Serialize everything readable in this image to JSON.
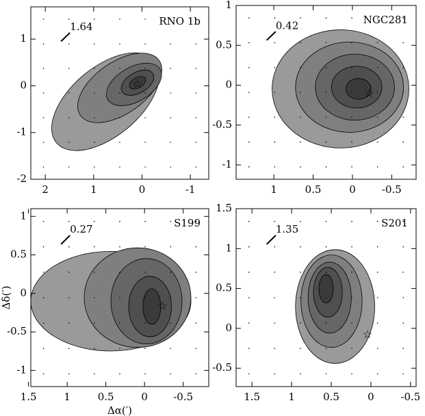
{
  "chart_data": [
    {
      "type": "contour",
      "title": "RNO 1b",
      "annotation": "1.64",
      "xlim": [
        2.3,
        -1.38
      ],
      "ylim": [
        -2,
        1.69
      ],
      "xticks": [
        2,
        1,
        0,
        -1
      ],
      "yticks": [
        -2,
        -1,
        0,
        1
      ]
    },
    {
      "type": "contour",
      "title": "NGC281",
      "annotation": "0.42",
      "xlim": [
        1.48,
        -0.81
      ],
      "ylim": [
        -1.18,
        1
      ],
      "xticks": [
        1,
        0.5,
        0,
        -0.5
      ],
      "yticks": [
        -1,
        -0.5,
        0,
        0.5,
        1
      ]
    },
    {
      "type": "contour",
      "title": "S199",
      "annotation": "0.27",
      "xlabel": "Δα(′)",
      "ylabel": "Δδ(′)",
      "xlim": [
        1.47,
        -0.83
      ],
      "ylim": [
        -1.21,
        1.1
      ],
      "xticks": [
        1.5,
        1,
        0.5,
        0,
        -0.5
      ],
      "yticks": [
        -1,
        -0.5,
        0,
        0.5,
        1
      ]
    },
    {
      "type": "contour",
      "title": "S201",
      "annotation": "1.35",
      "xlim": [
        1.7,
        -0.57
      ],
      "ylim": [
        -0.73,
        1.5
      ],
      "xticks": [
        1.5,
        1,
        0.5,
        0,
        -0.5
      ],
      "yticks": [
        -0.5,
        0,
        0.5,
        1,
        1.5
      ]
    }
  ]
}
